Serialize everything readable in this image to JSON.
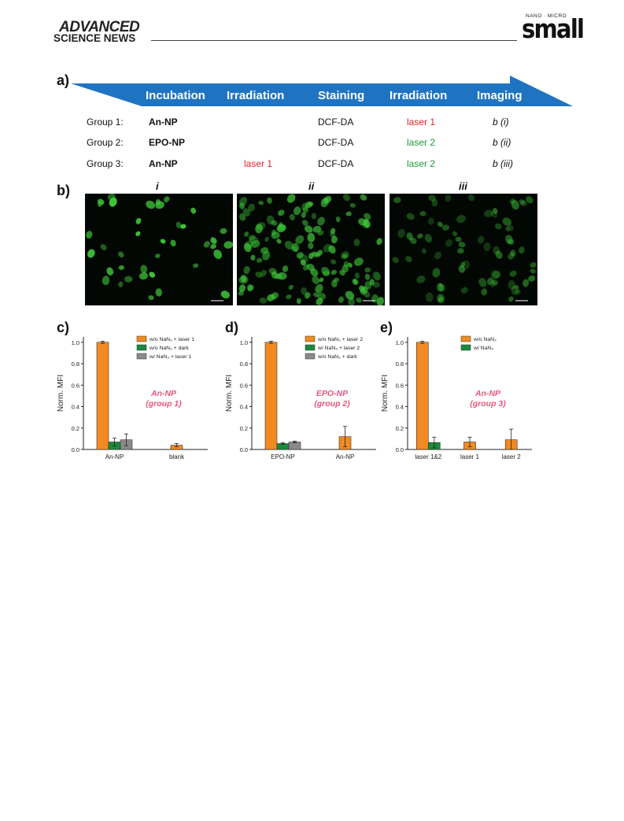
{
  "header": {
    "journal_left_top": "ADVANCED",
    "journal_left_bottom": "SCIENCE NEWS",
    "journal_right_top": "NANO · MICRO",
    "journal_right_bottom": "small"
  },
  "panel_a": {
    "label": "a)",
    "headers": [
      "Incubation",
      "Irradiation",
      "Staining",
      "Irradiation",
      "Imaging"
    ],
    "rows": [
      {
        "group": "Group 1:",
        "incubation": "An-NP",
        "irradiation": "",
        "staining": "DCF-DA",
        "irradiation2": "laser 1",
        "imaging": "b (i)"
      },
      {
        "group": "Group 2:",
        "incubation": "EPO-NP",
        "irradiation": "",
        "staining": "DCF-DA",
        "irradiation2": "laser 2",
        "imaging": "b (ii)"
      },
      {
        "group": "Group 3:",
        "incubation": "An-NP",
        "irradiation": "laser 1",
        "staining": "DCF-DA",
        "irradiation2": "laser 2",
        "imaging": "b (iii)"
      }
    ],
    "colors": {
      "arrow": "#1f74c2",
      "laser1": "#e0232a",
      "laser2": "#1e9a3a"
    }
  },
  "panel_b": {
    "label": "b)",
    "titles": [
      "i",
      "ii",
      "iii"
    ],
    "background_color": "#030703",
    "cell_color": "#3fc83a"
  },
  "chart_data": [
    {
      "panel": "c)",
      "type": "bar",
      "ylabel": "Norm. MFI",
      "ylim": [
        0,
        1.05
      ],
      "yticks": [
        "0.0",
        "0.2",
        "0.4",
        "0.6",
        "0.8",
        "1.0"
      ],
      "categories": [
        "An-NP",
        "blank"
      ],
      "series": [
        {
          "name": "w/o NaN₃ + laser 1",
          "color": "#f18a22",
          "values": [
            1.0,
            0.04
          ],
          "errors": [
            0.01,
            0.015
          ]
        },
        {
          "name": "w/o NaN₃ + dark",
          "color": "#188a3c",
          "values": [
            0.07,
            null
          ],
          "errors": [
            0.035,
            null
          ]
        },
        {
          "name": "w/   NaN₃ + laser 1",
          "color": "#8a8a8a",
          "values": [
            0.09,
            null
          ],
          "errors": [
            0.055,
            null
          ]
        }
      ],
      "annotation": [
        "An-NP",
        "(group 1)"
      ],
      "annotation_color": "#e8567e"
    },
    {
      "panel": "d)",
      "type": "bar",
      "ylabel": "Norm. MFI",
      "ylim": [
        0,
        1.05
      ],
      "yticks": [
        "0.0",
        "0.2",
        "0.4",
        "0.6",
        "0.8",
        "1.0"
      ],
      "categories": [
        "EPO-NP",
        "An-NP"
      ],
      "series": [
        {
          "name": "w/o NaN₃ + laser 2",
          "color": "#f18a22",
          "values": [
            1.0,
            0.12
          ],
          "errors": [
            0.01,
            0.095
          ]
        },
        {
          "name": "w/   NaN₃ + laser 2",
          "color": "#188a3c",
          "values": [
            0.055,
            null
          ],
          "errors": [
            0.008,
            null
          ]
        },
        {
          "name": "w/o NaN₃ + dark",
          "color": "#8a8a8a",
          "values": [
            0.07,
            null
          ],
          "errors": [
            0.008,
            null
          ]
        }
      ],
      "annotation": [
        "EPO-NP",
        "(group 2)"
      ],
      "annotation_color": "#e8567e"
    },
    {
      "panel": "e)",
      "type": "bar",
      "ylabel": "Norm. MFI",
      "ylim": [
        0,
        1.05
      ],
      "yticks": [
        "0.0",
        "0.2",
        "0.4",
        "0.6",
        "0.8",
        "1.0"
      ],
      "categories": [
        "laser 1&2",
        "laser 1",
        "laser 2"
      ],
      "series": [
        {
          "name": "w/o NaN₃",
          "color": "#f18a22",
          "values": [
            1.0,
            0.07,
            0.09
          ],
          "errors": [
            0.01,
            0.045,
            0.1
          ]
        },
        {
          "name": "w/   NaN₃",
          "color": "#188a3c",
          "values": [
            0.065,
            null,
            null
          ],
          "errors": [
            0.05,
            null,
            null
          ]
        }
      ],
      "annotation": [
        "An-NP",
        "(group 3)"
      ],
      "annotation_color": "#e8567e"
    }
  ]
}
